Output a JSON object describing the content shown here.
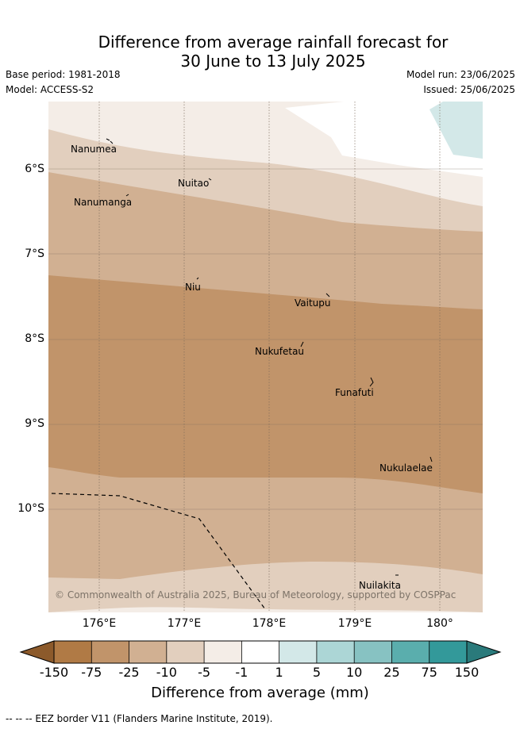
{
  "title": {
    "line1": "Difference from average rainfall forecast for",
    "line2": "30 June to 13 July 2025"
  },
  "meta": {
    "base_period": "Base period: 1981-2018",
    "model": "Model: ACCESS-S2",
    "model_run": "Model run: 23/06/2025",
    "issued": "Issued: 25/06/2025"
  },
  "map": {
    "latitude_labels": [
      "6°S",
      "7°S",
      "8°S",
      "9°S",
      "10°S"
    ],
    "longitude_labels": [
      "176°E",
      "177°E",
      "178°E",
      "179°E",
      "180°"
    ],
    "places": {
      "nanumea": "Nanumea",
      "nuitao": "Nuitao",
      "nanumanga": "Nanumanga",
      "niu": "Niu",
      "vaitupu": "Vaitupu",
      "nukufetau": "Nukufetau",
      "funafuti": "Funafuti",
      "nukulaelae": "Nukulaelae",
      "nuilakita": "Nuilakita"
    },
    "copyright": "© Commonwealth of Australia 2025, Bureau of Meteorology, supported by COSPPac"
  },
  "colorbar": {
    "ticks": [
      "-150",
      "-75",
      "-25",
      "-10",
      "-5",
      "-1",
      "1",
      "5",
      "10",
      "25",
      "75",
      "150"
    ],
    "colors": [
      "#8c5a2b",
      "#b07a45",
      "#c1946a",
      "#d1b092",
      "#e2cfbe",
      "#f4ede7",
      "#ffffff",
      "#d3e8e8",
      "#acd6d6",
      "#87c2c2",
      "#5aaead",
      "#33999a",
      "#2a7a7b"
    ],
    "title": "Difference from average (mm)"
  },
  "legend": {
    "eez": "-- -- -- EEZ border V11 (Flanders Marine Institute, 2019)."
  }
}
